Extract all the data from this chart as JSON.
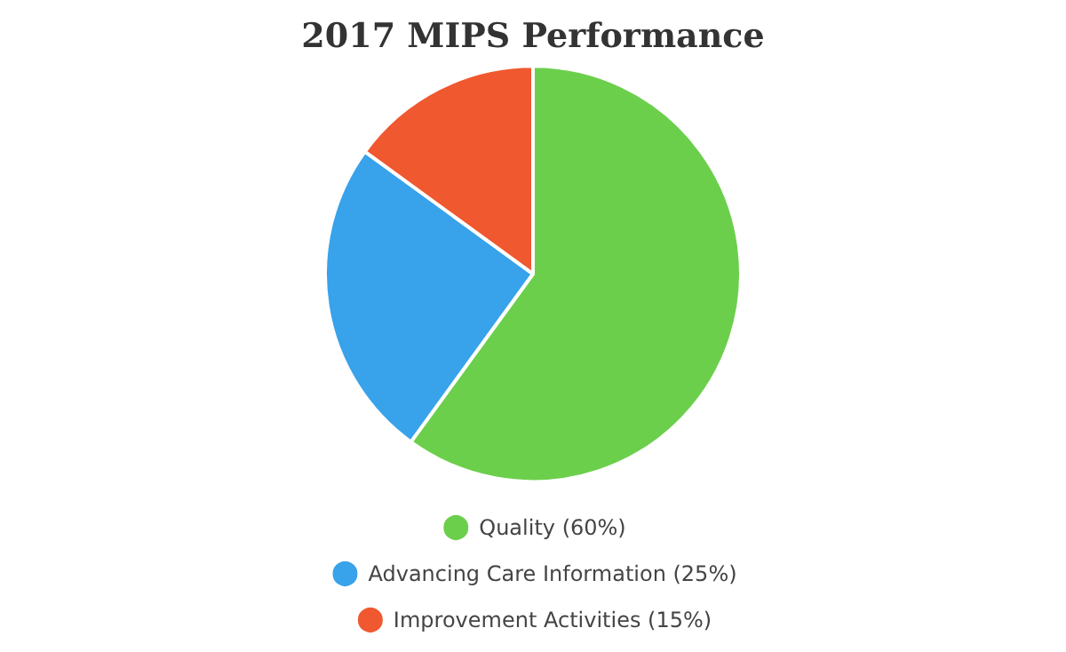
{
  "chart_data": {
    "type": "pie",
    "title": "2017 MIPS Performance",
    "categories": [
      "Quality (60%)",
      "Advancing Care Information (25%)",
      "Improvement Activities (15%)"
    ],
    "values": [
      60,
      25,
      15
    ],
    "colors": [
      "#6bcf4c",
      "#38a2ea",
      "#f0582f"
    ],
    "legend": "bottom"
  }
}
